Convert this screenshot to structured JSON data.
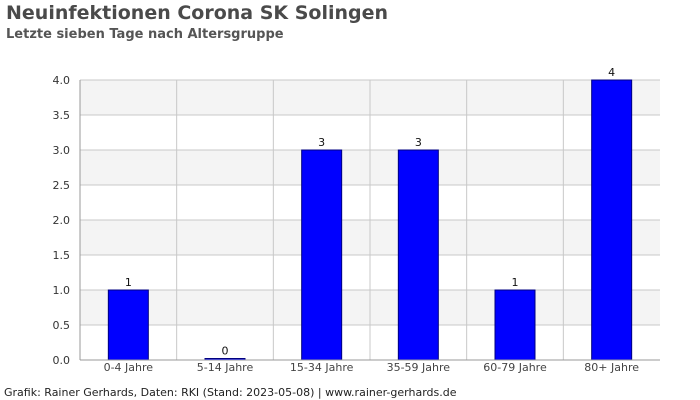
{
  "header": {
    "title": "Neuinfektionen Corona SK Solingen",
    "subtitle": "Letzte sieben Tage nach Altersgruppe"
  },
  "footer": {
    "credit": "Grafik: Rainer Gerhards, Daten: RKI (Stand: 2023-05-08) | www.rainer-gerhards.de"
  },
  "chart_data": {
    "type": "bar",
    "categories": [
      "0-4 Jahre",
      "5-14 Jahre",
      "15-34 Jahre",
      "35-59 Jahre",
      "60-79 Jahre",
      "80+ Jahre"
    ],
    "values": [
      1,
      0,
      3,
      3,
      1,
      4
    ],
    "data_labels": [
      "1",
      "0",
      "3",
      "3",
      "1",
      "4"
    ],
    "yticks": [
      "0.0",
      "0.5",
      "1.0",
      "1.5",
      "2.0",
      "2.5",
      "3.0",
      "3.5",
      "4.0"
    ],
    "ylim": [
      0,
      4
    ],
    "ytick_step": 0.5,
    "grid": true,
    "colors": {
      "bar_fill": "#0000ff",
      "bar_stroke": "#000080",
      "band_light": "#f4f4f4",
      "band_white": "#ffffff",
      "grid": "#c8c8c8",
      "axis": "#999999"
    }
  }
}
